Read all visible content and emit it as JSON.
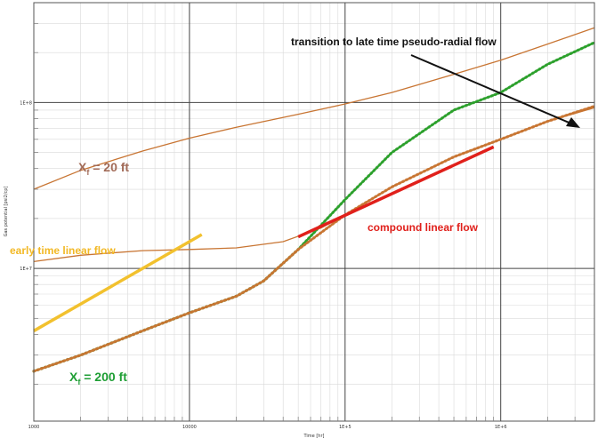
{
  "chart_data": {
    "type": "line",
    "title": "",
    "xlabel": "Time [hr]",
    "ylabel": "Gas potential [psi2/cp]",
    "xscale": "log",
    "yscale": "log",
    "xlim": [
      1000,
      4000000
    ],
    "ylim": [
      1200000,
      400000000
    ],
    "grid": true,
    "x_ticks": [
      {
        "value": 1000,
        "label": "1000"
      },
      {
        "value": 10000,
        "label": "10000"
      },
      {
        "value": 100000,
        "label": "1E+5"
      },
      {
        "value": 1000000,
        "label": "1E+6"
      }
    ],
    "y_ticks": [
      {
        "value": 10000000,
        "label": "1E+7"
      },
      {
        "value": 100000000,
        "label": "1E+8"
      }
    ],
    "series": [
      {
        "color": "#c87533",
        "style": "solid",
        "points": [
          [
            1000,
            30000000
          ],
          [
            2000,
            39000000
          ],
          [
            5000,
            51000000
          ],
          [
            10000,
            61000000
          ],
          [
            20000,
            71000000
          ],
          [
            50000,
            85000000
          ],
          [
            100000,
            98000000
          ],
          [
            200000,
            115000000
          ],
          [
            500000,
            148000000
          ],
          [
            1000000,
            180000000
          ],
          [
            2000000,
            225000000
          ],
          [
            4000000,
            282000000
          ]
        ]
      },
      {
        "color": "#2ca02c",
        "style": "dotted-line",
        "points": [
          [
            1000,
            2400000
          ],
          [
            2000,
            3000000
          ],
          [
            5000,
            4200000
          ],
          [
            10000,
            5400000
          ],
          [
            20000,
            6800000
          ],
          [
            30000,
            8400000
          ],
          [
            50000,
            13000000
          ],
          [
            100000,
            26000000
          ],
          [
            200000,
            50000000
          ],
          [
            500000,
            90000000
          ],
          [
            1000000,
            115000000
          ],
          [
            2000000,
            170000000
          ],
          [
            4000000,
            230000000
          ]
        ]
      },
      {
        "color": "#c87533",
        "style": "solid",
        "points": [
          [
            1000,
            11000000
          ],
          [
            2000,
            12000000
          ],
          [
            5000,
            12800000
          ],
          [
            10000,
            13000000
          ],
          [
            20000,
            13300000
          ],
          [
            40000,
            14500000
          ],
          [
            70000,
            17500000
          ],
          [
            100000,
            21000000
          ],
          [
            200000,
            31000000
          ],
          [
            500000,
            47000000
          ],
          [
            1000000,
            60000000
          ],
          [
            2000000,
            77000000
          ],
          [
            4000000,
            93000000
          ]
        ]
      },
      {
        "color": "#c87533",
        "style": "dotted-line",
        "points": [
          [
            1000,
            2400000
          ],
          [
            2000,
            3000000
          ],
          [
            5000,
            4200000
          ],
          [
            10000,
            5400000
          ],
          [
            20000,
            6800000
          ],
          [
            30000,
            8400000
          ],
          [
            50000,
            13000000
          ],
          [
            100000,
            21000000
          ],
          [
            200000,
            31000000
          ],
          [
            500000,
            47000000
          ],
          [
            1000000,
            60000000
          ],
          [
            2000000,
            77000000
          ],
          [
            4000000,
            95000000
          ]
        ]
      }
    ],
    "trend_lines": [
      {
        "name": "early time linear flow",
        "color": "#f2c12e",
        "points": [
          [
            1000,
            4200000
          ],
          [
            12000,
            16000000
          ]
        ]
      },
      {
        "name": "compound linear flow",
        "color": "#e0201b",
        "points": [
          [
            50000,
            15500000
          ],
          [
            900000,
            54000000
          ]
        ]
      }
    ],
    "annotations": [
      {
        "id": "xf20",
        "base": "X",
        "sub": "f",
        "rest": " = 20 ft",
        "color": "#a26b58"
      },
      {
        "id": "xf200",
        "base": "X",
        "sub": "f",
        "rest": " = 200 ft",
        "color": "#1e9e34"
      },
      {
        "id": "early",
        "text": "early time linear flow",
        "color": "#f2b824"
      },
      {
        "id": "compound",
        "text": "compound linear flow",
        "color": "#e0201b"
      },
      {
        "id": "transition",
        "text": "transition to late time pseudo-radial  flow",
        "color": "#111111"
      }
    ]
  }
}
